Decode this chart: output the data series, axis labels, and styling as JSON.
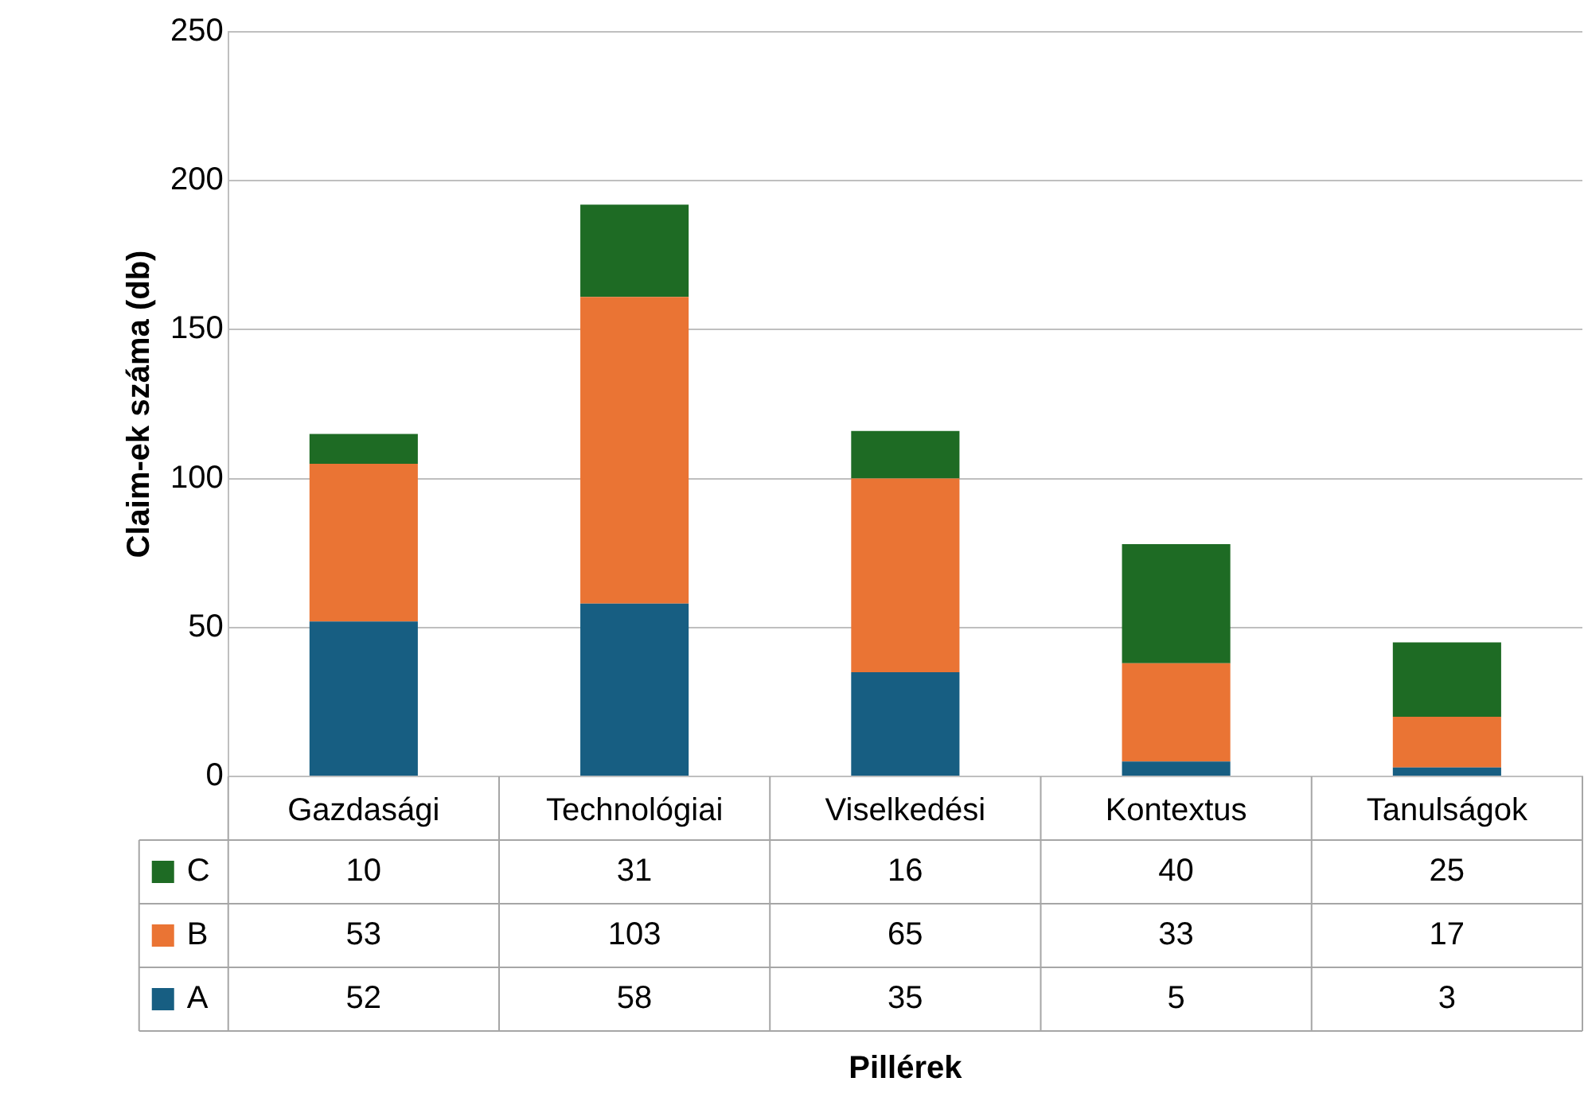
{
  "chart_data": {
    "type": "bar",
    "stacked": true,
    "annotations": [
      "Pillérek"
    ],
    "ylabel": "Claim-ek száma (db)",
    "categories": [
      "Gazdasági",
      "Technológiai",
      "Viselkedési",
      "Kontextus",
      "Tanulságok"
    ],
    "series": [
      {
        "name": "A",
        "color": "#175e82",
        "values": [
          52,
          58,
          35,
          5,
          3
        ]
      },
      {
        "name": "B",
        "color": "#ea7434",
        "values": [
          53,
          103,
          65,
          33,
          17
        ]
      },
      {
        "name": "C",
        "color": "#1e6b24",
        "values": [
          10,
          31,
          16,
          40,
          25
        ]
      }
    ],
    "ylim": [
      0,
      250
    ],
    "yticks": [
      0,
      50,
      100,
      150,
      200,
      250
    ],
    "grid": "y",
    "data_labels": true,
    "legend": "bottom left"
  }
}
